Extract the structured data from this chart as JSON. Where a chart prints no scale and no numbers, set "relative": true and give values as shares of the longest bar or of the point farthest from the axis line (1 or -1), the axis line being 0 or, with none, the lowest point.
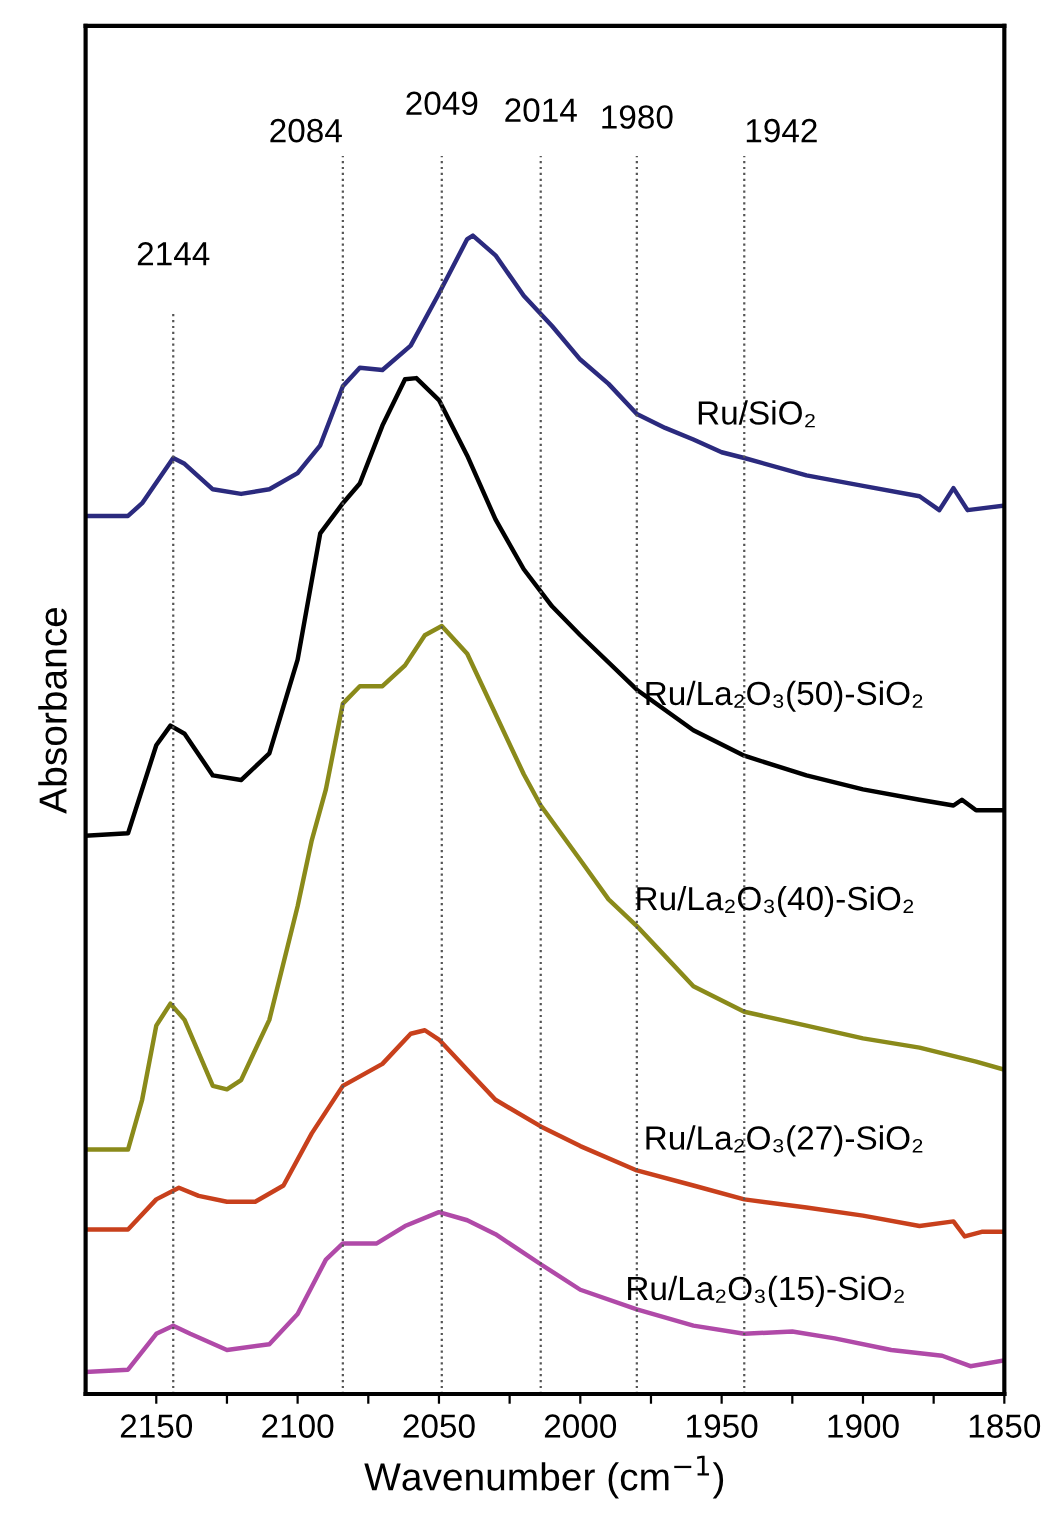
{
  "chart_data": {
    "type": "line",
    "relative": true,
    "xlabel": "Wavenumber (cm$^{−1}$)",
    "ylabel": "Absorbance",
    "xlim": [
      2175,
      1850
    ],
    "xticks": [
      2150,
      {
        "value": 2125,
        "label": null
      },
      2100,
      {
        "value": 2075,
        "label": null
      },
      2050,
      {
        "value": 2025,
        "label": null
      },
      2000,
      {
        "value": 1975,
        "label": null
      },
      1950,
      {
        "value": 1925,
        "label": null
      },
      1900,
      {
        "value": 1875,
        "label": null
      },
      1850
    ],
    "grid": false,
    "legend": false,
    "marker": "none",
    "line_style": "solid",
    "ref_lines": [
      {
        "axis": "x",
        "value": 2144,
        "label": "2144",
        "color": "#555555",
        "line_style": "dotted"
      },
      {
        "axis": "x",
        "value": 2084,
        "label": "2084",
        "color": "#555555",
        "line_style": "dotted"
      },
      {
        "axis": "x",
        "value": 2049,
        "label": "2049",
        "color": "#555555",
        "line_style": "dotted"
      },
      {
        "axis": "x",
        "value": 2014,
        "label": "2014",
        "color": "#555555",
        "line_style": "dotted"
      },
      {
        "axis": "x",
        "value": 1980,
        "label": "1980",
        "color": "#555555",
        "line_style": "dotted"
      },
      {
        "axis": "x",
        "value": 1942,
        "label": "1942",
        "color": "#555555",
        "line_style": "dotted"
      }
    ],
    "series": [
      {
        "name": "Ru/SiO₂",
        "color": "#2b2a7e",
        "x": [
          2175,
          2160,
          2155,
          2144,
          2140,
          2130,
          2120,
          2110,
          2100,
          2092,
          2084,
          2078,
          2070,
          2060,
          2050,
          2040,
          2038,
          2030,
          2020,
          2010,
          2000,
          1990,
          1980,
          1970,
          1960,
          1950,
          1942,
          1920,
          1900,
          1880,
          1873,
          1868,
          1863,
          1850
        ],
        "values": [
          0.758,
          0.758,
          0.769,
          0.808,
          0.803,
          0.781,
          0.777,
          0.781,
          0.795,
          0.819,
          0.87,
          0.886,
          0.884,
          0.905,
          0.95,
          0.997,
          1.0,
          0.983,
          0.948,
          0.922,
          0.893,
          0.872,
          0.846,
          0.834,
          0.824,
          0.813,
          0.808,
          0.793,
          0.784,
          0.775,
          0.763,
          0.782,
          0.763,
          0.767
        ]
      },
      {
        "name": "Ru/La₂O₃(50)-SiO₂",
        "color": "#000000",
        "x": [
          2175,
          2160,
          2150,
          2145,
          2140,
          2130,
          2120,
          2110,
          2100,
          2092,
          2084,
          2078,
          2070,
          2062,
          2058,
          2050,
          2040,
          2030,
          2020,
          2010,
          2000,
          1980,
          1960,
          1942,
          1920,
          1900,
          1880,
          1868,
          1865,
          1860,
          1850
        ],
        "values": [
          0.482,
          0.484,
          0.56,
          0.577,
          0.57,
          0.534,
          0.53,
          0.553,
          0.634,
          0.743,
          0.769,
          0.786,
          0.836,
          0.876,
          0.877,
          0.858,
          0.81,
          0.755,
          0.712,
          0.68,
          0.655,
          0.608,
          0.573,
          0.551,
          0.534,
          0.522,
          0.513,
          0.508,
          0.513,
          0.504,
          0.504
        ]
      },
      {
        "name": "Ru/La₂O₃(40)-SiO₂",
        "color": "#8a8a1a",
        "x": [
          2175,
          2160,
          2155,
          2150,
          2145,
          2140,
          2130,
          2125,
          2120,
          2110,
          2100,
          2095,
          2090,
          2084,
          2078,
          2070,
          2062,
          2055,
          2049,
          2040,
          2030,
          2020,
          2014,
          2000,
          1990,
          1980,
          1970,
          1960,
          1942,
          1920,
          1900,
          1880,
          1860,
          1850
        ],
        "values": [
          0.211,
          0.211,
          0.254,
          0.318,
          0.337,
          0.323,
          0.266,
          0.263,
          0.271,
          0.323,
          0.421,
          0.478,
          0.522,
          0.596,
          0.611,
          0.611,
          0.629,
          0.655,
          0.663,
          0.639,
          0.587,
          0.535,
          0.508,
          0.461,
          0.427,
          0.404,
          0.378,
          0.352,
          0.33,
          0.318,
          0.307,
          0.299,
          0.287,
          0.28
        ]
      },
      {
        "name": "Ru/La₂O₃(27)-SiO₂",
        "color": "#c8401c",
        "x": [
          2175,
          2160,
          2150,
          2142,
          2135,
          2125,
          2115,
          2105,
          2095,
          2084,
          2070,
          2060,
          2055,
          2050,
          2040,
          2030,
          2014,
          2000,
          1980,
          1960,
          1942,
          1920,
          1900,
          1880,
          1868,
          1864,
          1858,
          1850
        ],
        "values": [
          0.142,
          0.142,
          0.168,
          0.178,
          0.171,
          0.166,
          0.166,
          0.18,
          0.225,
          0.266,
          0.285,
          0.311,
          0.314,
          0.306,
          0.28,
          0.254,
          0.231,
          0.214,
          0.193,
          0.18,
          0.168,
          0.161,
          0.154,
          0.145,
          0.149,
          0.136,
          0.14,
          0.14
        ]
      },
      {
        "name": "Ru/La₂O₃(15)-SiO₂",
        "color": "#b04aa8",
        "x": [
          2175,
          2160,
          2150,
          2144,
          2138,
          2125,
          2110,
          2100,
          2090,
          2084,
          2072,
          2062,
          2050,
          2040,
          2030,
          2014,
          2000,
          1980,
          1960,
          1942,
          1925,
          1910,
          1890,
          1872,
          1862,
          1850
        ],
        "values": [
          0.019,
          0.021,
          0.052,
          0.059,
          0.052,
          0.038,
          0.043,
          0.069,
          0.116,
          0.13,
          0.13,
          0.145,
          0.157,
          0.15,
          0.138,
          0.112,
          0.09,
          0.073,
          0.059,
          0.052,
          0.054,
          0.048,
          0.038,
          0.033,
          0.024,
          0.029
        ]
      }
    ]
  }
}
